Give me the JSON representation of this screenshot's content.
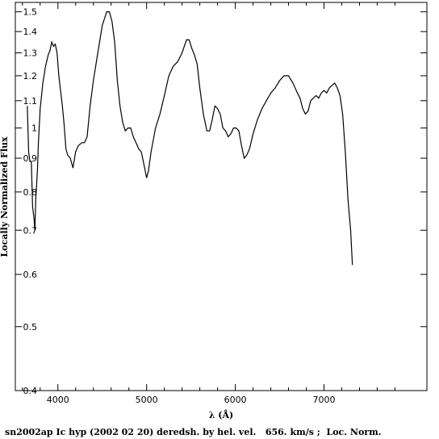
{
  "chart_data": {
    "type": "line",
    "xlabel": "λ (Å)",
    "ylabel": "Locally Normalized Flux",
    "caption": "sn2002ap Ic hyp (2002 02 20) deredsh. by hel. vel.   656. km/s ;  Loc. Norm.",
    "xlim": [
      3520,
      8160
    ],
    "ylim": [
      0.4,
      1.55
    ],
    "yscale": "log",
    "grid": false,
    "x_ticks": [
      {
        "value": 4000,
        "label": "4000"
      },
      {
        "value": 5000,
        "label": "5000"
      },
      {
        "value": 6000,
        "label": "6000"
      },
      {
        "value": 7000,
        "label": "7000"
      }
    ],
    "y_ticks": [
      {
        "value": 0.4,
        "label": "0.4"
      },
      {
        "value": 0.5,
        "label": "0.5"
      },
      {
        "value": 0.6,
        "label": "0.6"
      },
      {
        "value": 0.7,
        "label": "0.7"
      },
      {
        "value": 0.8,
        "label": "0.8"
      },
      {
        "value": 0.9,
        "label": "0.9"
      },
      {
        "value": 1.0,
        "label": "1"
      },
      {
        "value": 1.1,
        "label": "1.1"
      },
      {
        "value": 1.2,
        "label": "1.2"
      },
      {
        "value": 1.3,
        "label": "1.3"
      },
      {
        "value": 1.4,
        "label": "1.4"
      },
      {
        "value": 1.5,
        "label": "1.5"
      }
    ],
    "series": [
      {
        "color": "#000000",
        "points": [
          [
            3655,
            1.08
          ],
          [
            3670,
            0.92
          ],
          [
            3685,
            0.89
          ],
          [
            3700,
            0.89
          ],
          [
            3715,
            0.76
          ],
          [
            3730,
            0.73
          ],
          [
            3740,
            0.7
          ],
          [
            3750,
            0.78
          ],
          [
            3760,
            0.82
          ],
          [
            3770,
            0.87
          ],
          [
            3780,
            0.95
          ],
          [
            3800,
            1.07
          ],
          [
            3830,
            1.17
          ],
          [
            3860,
            1.24
          ],
          [
            3890,
            1.29
          ],
          [
            3910,
            1.31
          ],
          [
            3930,
            1.35
          ],
          [
            3950,
            1.33
          ],
          [
            3970,
            1.34
          ],
          [
            3990,
            1.3
          ],
          [
            4010,
            1.2
          ],
          [
            4050,
            1.08
          ],
          [
            4070,
            1.01
          ],
          [
            4090,
            0.93
          ],
          [
            4110,
            0.91
          ],
          [
            4140,
            0.9
          ],
          [
            4170,
            0.87
          ],
          [
            4200,
            0.92
          ],
          [
            4230,
            0.94
          ],
          [
            4270,
            0.95
          ],
          [
            4300,
            0.95
          ],
          [
            4330,
            0.97
          ],
          [
            4360,
            1.07
          ],
          [
            4400,
            1.18
          ],
          [
            4450,
            1.3
          ],
          [
            4500,
            1.43
          ],
          [
            4550,
            1.5
          ],
          [
            4580,
            1.5
          ],
          [
            4610,
            1.45
          ],
          [
            4640,
            1.35
          ],
          [
            4670,
            1.18
          ],
          [
            4700,
            1.08
          ],
          [
            4730,
            1.02
          ],
          [
            4760,
            0.99
          ],
          [
            4790,
            1.0
          ],
          [
            4820,
            1.0
          ],
          [
            4850,
            0.97
          ],
          [
            4880,
            0.95
          ],
          [
            4910,
            0.93
          ],
          [
            4940,
            0.92
          ],
          [
            4970,
            0.88
          ],
          [
            5000,
            0.84
          ],
          [
            5020,
            0.86
          ],
          [
            5050,
            0.92
          ],
          [
            5100,
            1.0
          ],
          [
            5150,
            1.05
          ],
          [
            5200,
            1.12
          ],
          [
            5250,
            1.2
          ],
          [
            5300,
            1.24
          ],
          [
            5350,
            1.26
          ],
          [
            5400,
            1.3
          ],
          [
            5450,
            1.36
          ],
          [
            5480,
            1.36
          ],
          [
            5510,
            1.32
          ],
          [
            5540,
            1.29
          ],
          [
            5570,
            1.25
          ],
          [
            5600,
            1.15
          ],
          [
            5640,
            1.05
          ],
          [
            5680,
            0.99
          ],
          [
            5710,
            0.99
          ],
          [
            5740,
            1.03
          ],
          [
            5770,
            1.08
          ],
          [
            5800,
            1.07
          ],
          [
            5830,
            1.05
          ],
          [
            5860,
            1.0
          ],
          [
            5890,
            0.99
          ],
          [
            5920,
            0.97
          ],
          [
            5950,
            0.98
          ],
          [
            5980,
            1.0
          ],
          [
            6010,
            1.0
          ],
          [
            6040,
            0.99
          ],
          [
            6070,
            0.94
          ],
          [
            6100,
            0.9
          ],
          [
            6130,
            0.91
          ],
          [
            6160,
            0.93
          ],
          [
            6200,
            0.98
          ],
          [
            6250,
            1.03
          ],
          [
            6300,
            1.07
          ],
          [
            6350,
            1.1
          ],
          [
            6400,
            1.13
          ],
          [
            6450,
            1.15
          ],
          [
            6500,
            1.18
          ],
          [
            6550,
            1.2
          ],
          [
            6600,
            1.2
          ],
          [
            6650,
            1.17
          ],
          [
            6700,
            1.13
          ],
          [
            6730,
            1.11
          ],
          [
            6760,
            1.07
          ],
          [
            6790,
            1.05
          ],
          [
            6820,
            1.06
          ],
          [
            6850,
            1.1
          ],
          [
            6880,
            1.11
          ],
          [
            6910,
            1.12
          ],
          [
            6940,
            1.11
          ],
          [
            6970,
            1.13
          ],
          [
            7000,
            1.14
          ],
          [
            7030,
            1.13
          ],
          [
            7060,
            1.15
          ],
          [
            7090,
            1.16
          ],
          [
            7120,
            1.17
          ],
          [
            7150,
            1.15
          ],
          [
            7180,
            1.12
          ],
          [
            7210,
            1.05
          ],
          [
            7240,
            0.92
          ],
          [
            7270,
            0.78
          ],
          [
            7300,
            0.7
          ],
          [
            7320,
            0.62
          ]
        ]
      }
    ]
  }
}
